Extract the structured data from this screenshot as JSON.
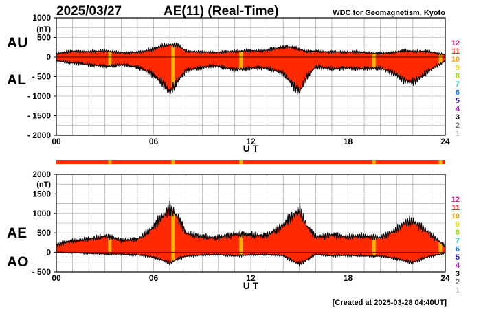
{
  "header": {
    "date": "2025/03/27",
    "title": "AE(11) (Real-Time)",
    "source": "WDC for Geomagnetism, Kyoto"
  },
  "footer": {
    "created": "[Created at 2025-03-28 04:40UT]"
  },
  "colors": {
    "fill": "#ff2a00",
    "outline": "#000000",
    "station_low": "#ffb400",
    "grid": "#999999"
  },
  "legend": {
    "levels": [
      {
        "label": "12",
        "color": "#e8127a"
      },
      {
        "label": "11",
        "color": "#ff1a1a"
      },
      {
        "label": "10",
        "color": "#ff9b00"
      },
      {
        "label": "9",
        "color": "#f0e000"
      },
      {
        "label": "8",
        "color": "#9ce000"
      },
      {
        "label": "7",
        "color": "#19d0c8"
      },
      {
        "label": "6",
        "color": "#0a7cff"
      },
      {
        "label": "5",
        "color": "#2020c0"
      },
      {
        "label": "4",
        "color": "#c000d0"
      },
      {
        "label": "3",
        "color": "#000000"
      },
      {
        "label": "2",
        "color": "#707070"
      },
      {
        "label": "1",
        "color": "#c8c8c8"
      }
    ]
  },
  "station_dips": [
    3.3,
    7.2,
    11.4,
    19.6,
    23.7
  ],
  "chart_data": [
    {
      "type": "area",
      "name": "AU/AL",
      "series_labels": [
        "AU",
        "AL"
      ],
      "ylabel": "(nT)",
      "xlabel": "U T",
      "xlim": [
        0,
        24
      ],
      "ylim": [
        -2000,
        1000
      ],
      "xticks": [
        0,
        6,
        12,
        18,
        24
      ],
      "xtick_labels": [
        "00",
        "06",
        "12",
        "18",
        "24"
      ],
      "yticks": [
        1000,
        500,
        0,
        -500,
        -1000,
        -1500,
        -2000
      ],
      "ytick_labels": [
        "1000",
        "500",
        "0",
        "- 500",
        "- 1000",
        "- 1500",
        "- 2000"
      ],
      "hour": [
        0,
        1,
        2,
        3,
        4,
        5,
        6,
        6.5,
        7,
        7.5,
        8,
        9,
        10,
        11,
        12,
        13,
        14,
        14.5,
        15,
        15.5,
        16,
        17,
        18,
        19,
        20,
        21,
        21.5,
        22,
        23,
        24
      ],
      "AU": [
        90,
        150,
        140,
        160,
        110,
        120,
        200,
        280,
        320,
        300,
        150,
        130,
        120,
        150,
        160,
        170,
        260,
        250,
        200,
        140,
        150,
        130,
        130,
        120,
        90,
        130,
        160,
        150,
        140,
        60
      ],
      "AL": [
        -100,
        -150,
        -190,
        -240,
        -200,
        -250,
        -450,
        -650,
        -900,
        -600,
        -350,
        -260,
        -230,
        -330,
        -280,
        -280,
        -420,
        -650,
        -900,
        -480,
        -250,
        -300,
        -280,
        -300,
        -280,
        -450,
        -600,
        -650,
        -350,
        -100
      ]
    },
    {
      "type": "area",
      "name": "AE/AO",
      "series_labels": [
        "AE",
        "AO"
      ],
      "ylabel": "(nT)",
      "xlabel": "U T",
      "xlim": [
        0,
        24
      ],
      "ylim": [
        -500,
        2000
      ],
      "xticks": [
        0,
        6,
        12,
        18,
        24
      ],
      "xtick_labels": [
        "00",
        "06",
        "12",
        "18",
        "24"
      ],
      "yticks": [
        2000,
        1500,
        1000,
        500,
        0,
        -500
      ],
      "ytick_labels": [
        "2000",
        "1500",
        "1000",
        "500",
        "0",
        "- 500"
      ],
      "hour": [
        0,
        1,
        2,
        3,
        4,
        5,
        6,
        6.5,
        7,
        7.5,
        8,
        9,
        10,
        11,
        12,
        13,
        14,
        14.5,
        15,
        15.5,
        16,
        17,
        18,
        19,
        20,
        21,
        21.5,
        22,
        23,
        24
      ],
      "AE": [
        200,
        300,
        340,
        420,
        320,
        330,
        650,
        900,
        1150,
        900,
        500,
        400,
        380,
        470,
        450,
        430,
        700,
        900,
        1100,
        650,
        400,
        450,
        400,
        420,
        380,
        580,
        760,
        800,
        500,
        150
      ],
      "AO": [
        0,
        -5,
        -25,
        -40,
        -45,
        -60,
        -120,
        -190,
        -280,
        -150,
        -100,
        -65,
        -55,
        -90,
        -60,
        -55,
        -80,
        -200,
        -300,
        -180,
        -50,
        -85,
        -75,
        -90,
        -95,
        -160,
        -220,
        -250,
        -105,
        -20
      ]
    }
  ]
}
